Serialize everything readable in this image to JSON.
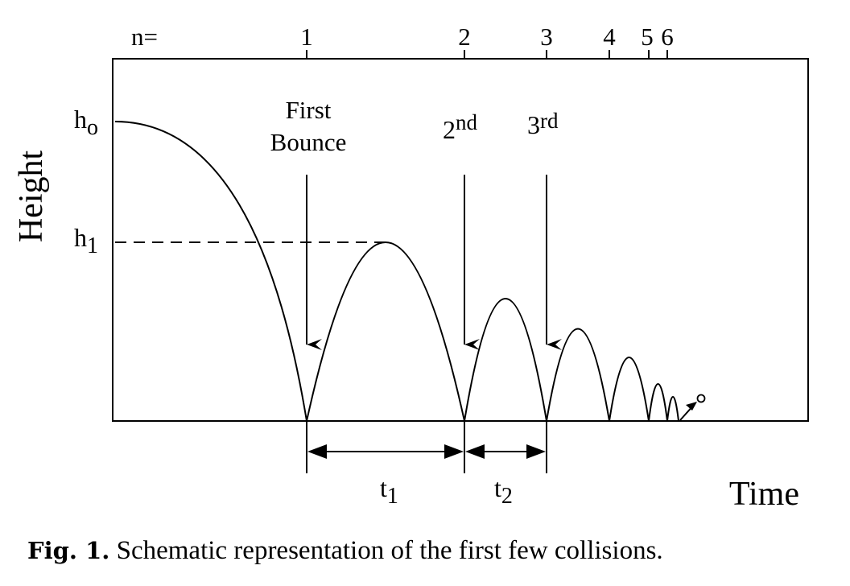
{
  "labels": {
    "n_prefix": "n=",
    "n_values": [
      "1",
      "2",
      "3",
      "4",
      "5",
      "6"
    ],
    "first_bounce_line1": "First",
    "first_bounce_line2": "Bounce",
    "second_num": "2",
    "second_sup": "nd",
    "third_num": "3",
    "third_sup": "rd",
    "h0_base": "h",
    "h0_sub": "o",
    "h1_base": "h",
    "h1_sub": "1",
    "t1_base": "t",
    "t1_sub": "1",
    "t2_base": "t",
    "t2_sub": "2",
    "y_axis": "Height",
    "x_axis": "Time"
  },
  "caption": {
    "prefix": "Fig. 1.",
    "text": " Schematic representation of the first few collisions."
  }
}
